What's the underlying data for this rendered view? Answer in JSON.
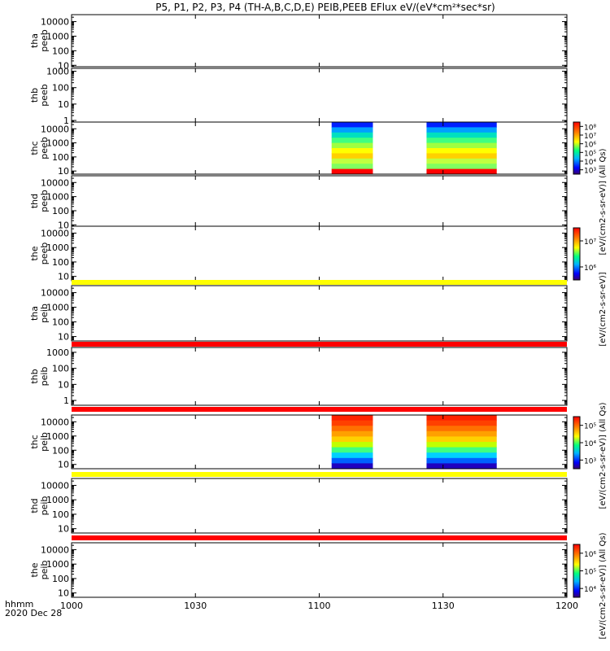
{
  "title": "P5, P1, P2, P3, P4 (TH-A,B,C,D,E) PEIB,PEEB EFlux eV/(eV*cm²*sec*sr)",
  "x_axis": {
    "label_line1": "hhmm",
    "label_line2": "2020 Dec 28",
    "ticks": [
      "1000",
      "1030",
      "1100",
      "1130",
      "1200"
    ],
    "tick_values_min": [
      0,
      30,
      60,
      90,
      120
    ]
  },
  "colorbar_labels": {
    "eflux_dual": "[eV/(cm2-s-sr-eV)] (All Qs)",
    "eflux": "[eV/(cm2-s-sr-eV)]",
    "eflux_allqs": "[eV/(cm2-s-sr-eV)] (All Qs)"
  },
  "colors": {
    "yellow_bar": "#ffff00",
    "red_bar": "#ff0000",
    "black": "#000000"
  },
  "chart_data": {
    "type": "heatmap",
    "x_range_minutes_after_1000": [
      0,
      120
    ],
    "y_scale": "log",
    "panels": [
      {
        "label1": "tha",
        "label2": "peeb",
        "ticks": [
          "10",
          "100",
          "1000",
          "10000"
        ],
        "ylim": [
          8,
          30000
        ],
        "data_blocks": [],
        "colorbar": null
      },
      {
        "label1": "thb",
        "label2": "peeb",
        "ticks": [
          "1",
          "10",
          "100",
          "1000"
        ],
        "ylim": [
          0.8,
          1500
        ],
        "data_blocks": [],
        "colorbar": null
      },
      {
        "label1": "thc",
        "label2": "peeb",
        "ticks": [
          "10",
          "100",
          "1000",
          "10000"
        ],
        "ylim": [
          6,
          30000
        ],
        "data_blocks": [
          {
            "t_start": 63,
            "t_end": 73
          },
          {
            "t_start": 86,
            "t_end": 103
          }
        ],
        "colorbar": {
          "ticks": [
            "10³",
            "10⁴",
            "10⁵",
            "10⁶",
            "10⁷",
            "10⁸"
          ]
        }
      },
      {
        "label1": "thd",
        "label2": "peeb",
        "ticks": [
          "10",
          "100",
          "1000",
          "10000"
        ],
        "ylim": [
          8,
          30000
        ],
        "data_blocks": [],
        "colorbar": null
      },
      {
        "label1": "the",
        "label2": "peeb",
        "ticks": [
          "10",
          "100",
          "1000",
          "10000"
        ],
        "ylim": [
          5,
          30000
        ],
        "data_blocks": [],
        "colorbar": {
          "ticks": [
            "10⁶",
            "10⁷"
          ]
        }
      },
      {
        "label1": "tha",
        "label2": "peib",
        "ticks": [
          "10",
          "100",
          "1000",
          "10000"
        ],
        "ylim": [
          5,
          30000
        ],
        "data_blocks": [],
        "colorbar": null,
        "bar_above": "yellow"
      },
      {
        "label1": "thb",
        "label2": "peib",
        "ticks": [
          "1",
          "10",
          "100",
          "1000"
        ],
        "ylim": [
          0.5,
          2000
        ],
        "data_blocks": [],
        "colorbar": null,
        "bar_above": "red"
      },
      {
        "label1": "thc",
        "label2": "peib",
        "ticks": [
          "10",
          "100",
          "1000",
          "10000"
        ],
        "ylim": [
          5,
          30000
        ],
        "data_blocks": [
          {
            "t_start": 63,
            "t_end": 73
          },
          {
            "t_start": 86,
            "t_end": 103
          }
        ],
        "colorbar": {
          "ticks": [
            "10³",
            "10⁴",
            "10⁵"
          ]
        },
        "bar_above": "red"
      },
      {
        "label1": "thd",
        "label2": "peib",
        "ticks": [
          "10",
          "100",
          "1000",
          "10000"
        ],
        "ylim": [
          5,
          30000
        ],
        "data_blocks": [],
        "colorbar": null,
        "bar_above": "yellow"
      },
      {
        "label1": "the",
        "label2": "peib",
        "ticks": [
          "10",
          "100",
          "1000",
          "10000"
        ],
        "ylim": [
          5,
          30000
        ],
        "data_blocks": [],
        "colorbar": {
          "ticks": [
            "10⁴",
            "10⁵",
            "10⁶"
          ]
        },
        "bar_above": "red"
      }
    ]
  }
}
